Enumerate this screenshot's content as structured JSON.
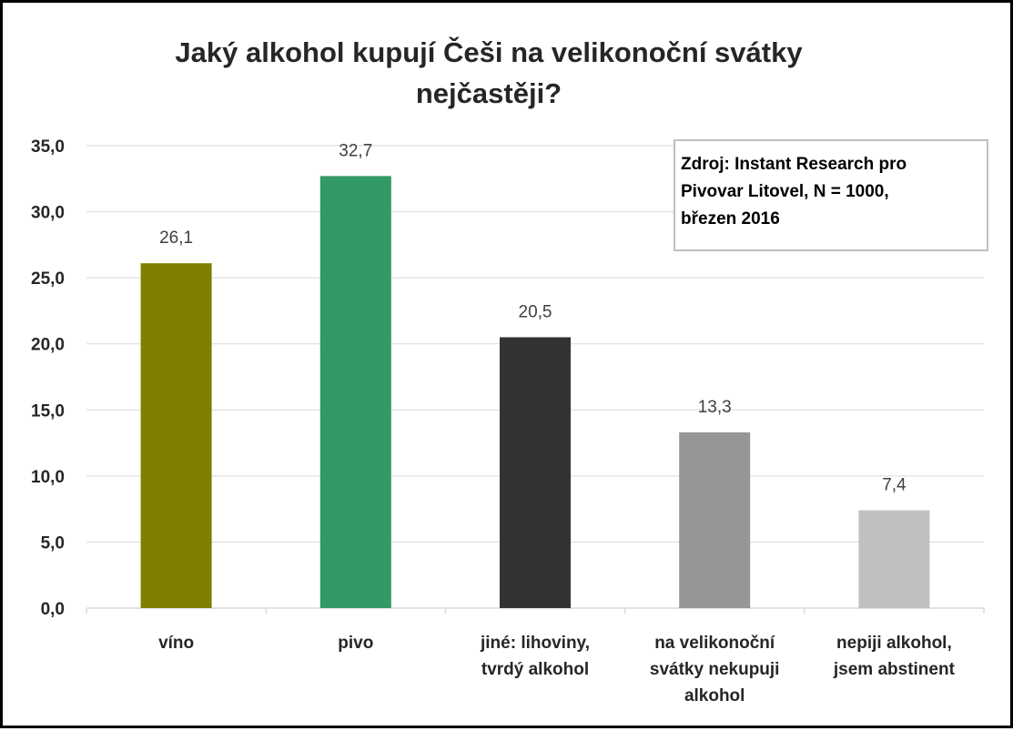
{
  "chart_data": {
    "type": "bar",
    "title_lines": [
      "Jaký alkohol kupují Češi na velikonoční svátky",
      "nejčastěji?"
    ],
    "categories": [
      [
        "víno"
      ],
      [
        "pivo"
      ],
      [
        "jiné: lihoviny,",
        "tvrdý alkohol"
      ],
      [
        "na velikonoční",
        "svátky nekupuji",
        "alkohol"
      ],
      [
        "nepiji alkohol,",
        "jsem abstinent"
      ]
    ],
    "values": [
      26.1,
      32.7,
      20.5,
      13.3,
      7.4
    ],
    "value_labels": [
      "26,1",
      "32,7",
      "20,5",
      "13,3",
      "7,4"
    ],
    "colors": [
      "#7f7f00",
      "#339966",
      "#333333",
      "#969696",
      "#c0c0c0"
    ],
    "ylim": [
      0,
      35
    ],
    "yticks": [
      0,
      5,
      10,
      15,
      20,
      25,
      30,
      35
    ],
    "ytick_labels": [
      "0,0",
      "5,0",
      "10,0",
      "15,0",
      "20,0",
      "25,0",
      "30,0",
      "35,0"
    ],
    "grid": true,
    "xlabel": "",
    "ylabel": "",
    "annotation_lines": [
      "Zdroj: Instant Research pro",
      "Pivovar Litovel, N = 1000,",
      "březen 2016"
    ],
    "annotation_placement": "top-right"
  }
}
